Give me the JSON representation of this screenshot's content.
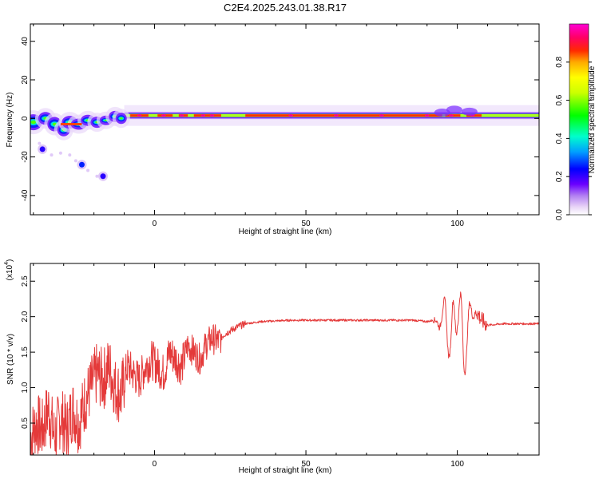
{
  "title": "C2E4.2025.243.01.38.R17",
  "colors": {
    "line": "#e43a3a",
    "axis": "#000000"
  },
  "chart_data": [
    {
      "type": "heatmap",
      "name": "spectrogram",
      "xlabel": "Height of straight line (km)",
      "ylabel": "Frequency (Hz)",
      "xlim": [
        -41,
        127
      ],
      "ylim": [
        -50,
        49
      ],
      "xticks": [
        0,
        50,
        100
      ],
      "xtick_labels": [
        "0",
        "50",
        "100"
      ],
      "yticks": [
        -40,
        -20,
        0,
        20,
        40
      ],
      "ytick_labels": [
        "-40",
        "-20",
        "0",
        "20",
        "40"
      ],
      "colorbar": {
        "label": "Normalized spectral amplitude",
        "range": [
          0,
          1
        ],
        "ticks": [
          0,
          0.2,
          0.4,
          0.6,
          0.8
        ],
        "tick_labels": [
          "0.0",
          "0.2",
          "0.4",
          "0.6",
          "0.8"
        ]
      },
      "features": [
        {
          "desc": "main band",
          "x": [
            -10,
            127
          ],
          "freq": 1.5,
          "amp": 0.9
        },
        {
          "desc": "dispersed low-height band",
          "x": [
            -41,
            -10
          ],
          "freq": -3,
          "amp": 0.6
        },
        {
          "desc": "spot",
          "x": -37,
          "freq": -16,
          "amp": 0.2
        },
        {
          "desc": "spot",
          "x": -24,
          "freq": -24,
          "amp": 0.25
        },
        {
          "desc": "spot",
          "x": -17,
          "freq": -30,
          "amp": 0.2
        }
      ]
    },
    {
      "type": "line",
      "name": "snr",
      "xlabel": "Height of straight line (km)",
      "ylabel": "SNR (10 * v/v)",
      "y_multiplier_label": "(x10",
      "y_multiplier_exp": "4",
      "y_multiplier_close": ")",
      "xlim": [
        -41,
        127
      ],
      "ylim": [
        0.05,
        2.75
      ],
      "xticks": [
        0,
        50,
        100
      ],
      "xtick_labels": [
        "0",
        "50",
        "100"
      ],
      "yticks": [
        0.5,
        1.0,
        1.5,
        2.0,
        2.5
      ],
      "ytick_labels": [
        "0.5",
        "1.0",
        "1.5",
        "2.0",
        "2.5"
      ],
      "series": [
        {
          "name": "SNR",
          "x": [
            -41,
            -39,
            -37,
            -35,
            -33,
            -31,
            -29,
            -27,
            -25,
            -23,
            -21,
            -19,
            -17,
            -15,
            -13,
            -11,
            -9,
            -7,
            -5,
            -3,
            -1,
            1,
            3,
            5,
            7,
            9,
            11,
            13,
            15,
            17,
            19,
            21,
            23,
            25,
            27,
            30,
            35,
            40,
            45,
            50,
            55,
            60,
            65,
            70,
            75,
            80,
            85,
            88,
            90,
            92,
            94,
            96,
            98,
            100,
            102,
            104,
            106,
            108,
            110,
            115,
            120,
            127
          ],
          "y": [
            0.3,
            0.5,
            0.4,
            0.7,
            0.3,
            0.6,
            0.4,
            0.7,
            0.5,
            0.8,
            1.0,
            1.2,
            1.1,
            1.3,
            1.0,
            0.9,
            1.3,
            1.2,
            1.1,
            1.3,
            1.4,
            1.3,
            1.2,
            1.5,
            1.4,
            1.3,
            1.6,
            1.5,
            1.4,
            1.6,
            1.7,
            1.65,
            1.75,
            1.8,
            1.85,
            1.9,
            1.93,
            1.94,
            1.95,
            1.95,
            1.95,
            1.95,
            1.95,
            1.95,
            1.95,
            1.95,
            1.95,
            1.94,
            1.93,
            1.95,
            1.9,
            2.1,
            1.5,
            2.4,
            1.4,
            2.0,
            2.1,
            1.95,
            1.88,
            1.9,
            1.9,
            1.9
          ]
        }
      ]
    }
  ]
}
